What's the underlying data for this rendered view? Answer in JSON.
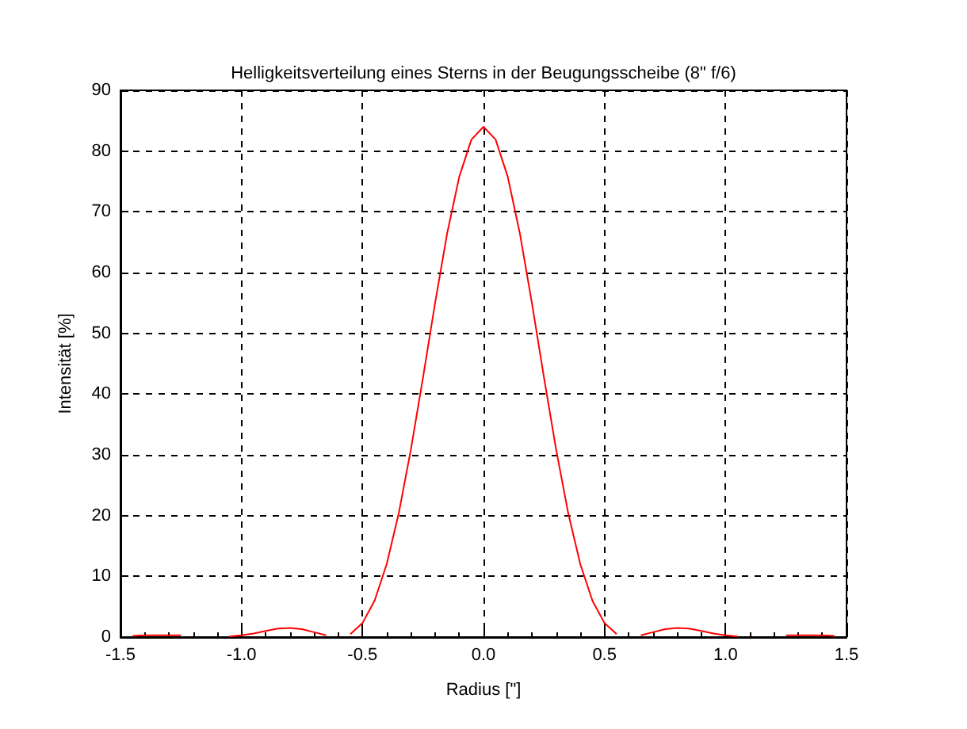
{
  "chart_data": {
    "type": "line",
    "title": "Helligkeitsverteilung eines Sterns in der Beugungsscheibe (8\" f/6)",
    "xlabel": "Radius [\"]",
    "ylabel": "Intensität [%]",
    "x": [
      -1.45,
      -1.4,
      -1.35,
      -1.3,
      -1.25,
      -1.2,
      -1.15,
      -1.1,
      -1.05,
      -1.0,
      -0.95,
      -0.9,
      -0.85,
      -0.8,
      -0.75,
      -0.7,
      -0.65,
      -0.6,
      -0.55,
      -0.5,
      -0.45,
      -0.4,
      -0.35,
      -0.3,
      -0.25,
      -0.2,
      -0.15,
      -0.1,
      -0.05,
      0,
      0.05,
      0.1,
      0.15,
      0.2,
      0.25,
      0.3,
      0.35,
      0.4,
      0.45,
      0.5,
      0.55,
      0.6,
      0.65,
      0.7,
      0.75,
      0.8,
      0.85,
      0.9,
      0.95,
      1.0,
      1.05,
      1.1,
      1.15,
      1.2,
      1.25,
      1.3,
      1.35,
      1.4,
      1.45
    ],
    "series": [
      {
        "color": "#ff0000",
        "values": [
          0.2,
          0.3,
          0.3,
          0.3,
          0.3,
          null,
          null,
          null,
          0.1,
          0.3,
          0.6,
          1.0,
          1.4,
          1.5,
          1.3,
          0.8,
          0.3,
          null,
          0.5,
          2.3,
          6.0,
          12.0,
          20.4,
          30.9,
          42.7,
          55.0,
          66.5,
          75.8,
          81.9,
          84,
          81.9,
          75.8,
          66.5,
          55.0,
          42.7,
          30.9,
          20.4,
          12.0,
          6.0,
          2.3,
          0.5,
          null,
          0.3,
          0.8,
          1.3,
          1.5,
          1.4,
          1.0,
          0.6,
          0.3,
          0.1,
          null,
          null,
          null,
          0.3,
          0.3,
          0.3,
          0.3,
          0.2
        ]
      }
    ],
    "xlim": [
      -1.5,
      1.5
    ],
    "xticks": [
      -1.5,
      {
        "value": -1,
        "label": "-1.0"
      },
      -0.5,
      {
        "value": 0,
        "label": "0.0"
      },
      0.5,
      {
        "value": 1,
        "label": "1.0"
      },
      1.5
    ],
    "ylim": [
      0,
      90
    ],
    "yticks": [
      0,
      10,
      20,
      30,
      40,
      50,
      60,
      70,
      80,
      90
    ],
    "grid": true,
    "marker": "none",
    "line_style": "solid"
  }
}
